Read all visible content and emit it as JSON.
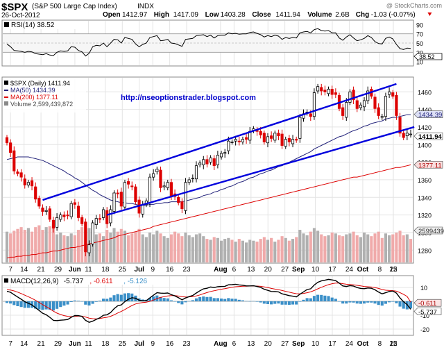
{
  "header": {
    "symbol": "$SPX",
    "name": "(S&P 500 Large Cap Index)",
    "exchange": "INDX",
    "watermark": "@ StockCharts.com",
    "date": "26-Oct-2012",
    "quote": [
      {
        "label": "Open",
        "value": "1412.97"
      },
      {
        "label": "High",
        "value": "1417.09"
      },
      {
        "label": "Low",
        "value": "1403.28"
      },
      {
        "label": "Close",
        "value": "1411.94"
      },
      {
        "label": "Volume",
        "value": "2.6B"
      },
      {
        "label": "Chg",
        "value": "-1.03 (-0.07%)"
      }
    ]
  },
  "url_overlay": "http://nseoptionstrader.blogspot.com",
  "rsi_panel": {
    "legend": "RSI(14) 38.52",
    "tag": "38.52",
    "ticks": [
      "90",
      "70",
      "50",
      "30",
      "10"
    ]
  },
  "price_panel": {
    "legend": [
      {
        "text": "$SPX (Daily) 1411.94",
        "color": "#000000",
        "marker": "square"
      },
      {
        "text": "MA(50) 1434.39",
        "color": "#22227a",
        "marker": "line"
      },
      {
        "text": "MA(200) 1377.11",
        "color": "#dd0000",
        "marker": "line"
      },
      {
        "text": "Volume 2,599,439,872",
        "color": "#888888",
        "marker": "square"
      }
    ],
    "ticks": [
      "1460",
      "1440",
      "1420",
      "1400",
      "1380",
      "1360",
      "1340",
      "1320",
      "1300",
      "1280"
    ],
    "tags": {
      "ma50": "1434.39",
      "close": "1411.94",
      "ma200": "1377.11",
      "volume": "2599439"
    }
  },
  "macd_panel": {
    "legend": [
      {
        "text": "MACD(12,26,9)",
        "color": "#000000"
      },
      {
        "text": "-5.737",
        "color": "#000000"
      },
      {
        "text": ", -0.611",
        "color": "#dd0000"
      },
      {
        "text": ", -5.126",
        "color": "#3a8fc8"
      }
    ],
    "ticks": [
      "10",
      "0",
      "-10",
      "-20"
    ],
    "tags": {
      "signal": "-0.611",
      "macd": "-5.737"
    }
  },
  "x_axis_labels": [
    "7",
    "14",
    "21",
    "29",
    "Jun",
    "11",
    "18",
    "25",
    "Jul",
    "9",
    "16",
    "23",
    "Aug",
    "6",
    "13",
    "20",
    "27",
    "Sep",
    "10",
    "17",
    "24",
    "Oct",
    "8",
    "15",
    "22"
  ],
  "colors": {
    "up": "#ffffff",
    "down": "#dd0000",
    "ma50": "#22227a",
    "ma200": "#dd0000",
    "channel": "#0000dd",
    "volume_up": "#b0b0b0",
    "volume_down": "#f0aaaa",
    "macd_hist": "#3a8fc8",
    "grid": "#e4e4e4"
  },
  "chart_data": {
    "type": "candlestick",
    "x_unit": "trading days (May 2 – Oct 26, 2012)",
    "ylim": [
      1266,
      1476
    ],
    "close": [
      1402,
      1391,
      1370,
      1367,
      1363,
      1354,
      1357,
      1353,
      1338,
      1330,
      1324,
      1325,
      1315,
      1305,
      1317,
      1320,
      1318,
      1319,
      1333,
      1332,
      1317,
      1310,
      1278,
      1286,
      1311,
      1316,
      1315,
      1326,
      1310,
      1326,
      1345,
      1344,
      1330,
      1357,
      1355,
      1352,
      1335,
      1322,
      1331,
      1336,
      1363,
      1367,
      1372,
      1351,
      1353,
      1357,
      1342,
      1341,
      1334,
      1327,
      1357,
      1360,
      1362,
      1376,
      1379,
      1383,
      1378,
      1385,
      1376,
      1388,
      1390,
      1391,
      1404,
      1403,
      1406,
      1403,
      1406,
      1406,
      1415,
      1418,
      1415,
      1411,
      1403,
      1409,
      1407,
      1413,
      1410,
      1399,
      1406,
      1403,
      1406,
      1405,
      1431,
      1435,
      1437,
      1432,
      1459,
      1466,
      1461,
      1460,
      1463,
      1457,
      1457,
      1441,
      1433,
      1448,
      1460,
      1451,
      1441,
      1445,
      1450,
      1461,
      1455,
      1441,
      1433,
      1432,
      1455,
      1460,
      1455,
      1433,
      1413,
      1408,
      1413,
      1412
    ],
    "ma50": [
      1383,
      1384,
      1385,
      1386,
      1386,
      1386,
      1386,
      1385,
      1384,
      1383,
      1382,
      1380,
      1378,
      1376,
      1374,
      1372,
      1370,
      1367,
      1365,
      1362,
      1360,
      1357,
      1354,
      1351,
      1348,
      1346,
      1343,
      1341,
      1339,
      1337,
      1336,
      1335,
      1334,
      1334,
      1333,
      1333,
      1332,
      1331,
      1331,
      1331,
      1332,
      1332,
      1333,
      1333,
      1334,
      1334,
      1335,
      1335,
      1335,
      1335,
      1336,
      1337,
      1338,
      1339,
      1340,
      1342,
      1343,
      1344,
      1346,
      1347,
      1349,
      1350,
      1352,
      1353,
      1355,
      1357,
      1358,
      1360,
      1362,
      1363,
      1365,
      1367,
      1368,
      1370,
      1371,
      1373,
      1375,
      1376,
      1378,
      1380,
      1382,
      1384,
      1386,
      1388,
      1390,
      1392,
      1395,
      1397,
      1399,
      1401,
      1403,
      1405,
      1407,
      1409,
      1410,
      1412,
      1414,
      1416,
      1417,
      1419,
      1421,
      1422,
      1424,
      1425,
      1426,
      1427,
      1429,
      1430,
      1431,
      1431,
      1432,
      1433,
      1434,
      1434
    ],
    "ma200": [
      1271,
      1272,
      1272,
      1273,
      1273,
      1274,
      1274,
      1275,
      1275,
      1276,
      1277,
      1277,
      1278,
      1279,
      1279,
      1280,
      1281,
      1282,
      1283,
      1283,
      1284,
      1285,
      1286,
      1287,
      1288,
      1289,
      1290,
      1291,
      1292,
      1293,
      1294,
      1296,
      1297,
      1298,
      1299,
      1300,
      1301,
      1302,
      1303,
      1304,
      1305,
      1307,
      1308,
      1309,
      1310,
      1311,
      1312,
      1313,
      1314,
      1315,
      1316,
      1317,
      1318,
      1319,
      1320,
      1321,
      1322,
      1323,
      1324,
      1325,
      1326,
      1327,
      1328,
      1329,
      1330,
      1331,
      1332,
      1333,
      1334,
      1335,
      1336,
      1337,
      1338,
      1339,
      1340,
      1341,
      1342,
      1343,
      1344,
      1345,
      1346,
      1347,
      1348,
      1349,
      1350,
      1351,
      1352,
      1353,
      1354,
      1355,
      1356,
      1357,
      1358,
      1359,
      1360,
      1361,
      1362,
      1363,
      1363,
      1364,
      1365,
      1366,
      1367,
      1368,
      1369,
      1370,
      1371,
      1372,
      1373,
      1374,
      1374,
      1375,
      1376,
      1377
    ],
    "rsi": [
      48,
      42,
      34,
      33,
      32,
      30,
      32,
      31,
      27,
      26,
      25,
      27,
      24,
      23,
      30,
      33,
      32,
      33,
      42,
      41,
      34,
      31,
      22,
      28,
      42,
      45,
      44,
      50,
      42,
      50,
      58,
      57,
      50,
      62,
      60,
      58,
      48,
      42,
      47,
      50,
      62,
      64,
      66,
      55,
      56,
      58,
      50,
      49,
      46,
      43,
      58,
      59,
      60,
      66,
      67,
      68,
      64,
      67,
      61,
      66,
      67,
      67,
      72,
      70,
      71,
      69,
      70,
      70,
      73,
      74,
      71,
      68,
      63,
      66,
      64,
      67,
      65,
      58,
      62,
      60,
      62,
      61,
      72,
      74,
      75,
      72,
      79,
      81,
      77,
      76,
      77,
      72,
      72,
      61,
      56,
      63,
      68,
      61,
      55,
      57,
      60,
      66,
      62,
      53,
      49,
      48,
      60,
      63,
      59,
      47,
      38,
      36,
      39,
      38.52
    ],
    "volume_billions": [
      3.4,
      3.2,
      3.5,
      3.7,
      3.9,
      3.6,
      3.8,
      3.4,
      3.9,
      4.1,
      3.6,
      3.9,
      4.0,
      4.2,
      3.1,
      3.3,
      3.0,
      2.9,
      3.2,
      3.0,
      3.6,
      3.9,
      4.5,
      3.8,
      3.4,
      3.1,
      3.2,
      2.9,
      3.6,
      3.3,
      3.8,
      3.4,
      3.7,
      3.5,
      3.0,
      3.2,
      3.4,
      3.7,
      3.1,
      2.8,
      3.3,
      3.1,
      3.5,
      3.2,
      2.9,
      2.7,
      3.1,
      3.4,
      3.2,
      2.9,
      3.3,
      3.0,
      2.8,
      3.1,
      3.2,
      2.9,
      2.6,
      2.5,
      2.8,
      2.7,
      2.4,
      2.6,
      2.7,
      2.5,
      2.3,
      2.6,
      2.4,
      2.2,
      2.5,
      2.4,
      2.3,
      2.6,
      2.8,
      2.5,
      2.7,
      2.3,
      2.5,
      2.9,
      2.7,
      2.4,
      2.6,
      2.8,
      3.6,
      3.2,
      3.0,
      3.4,
      3.8,
      3.5,
      3.1,
      2.9,
      3.0,
      3.3,
      3.2,
      3.0,
      2.9,
      3.1,
      3.2,
      3.4,
      3.0,
      2.8,
      3.3,
      3.1,
      2.9,
      3.2,
      3.4,
      2.7,
      3.2,
      3.0,
      3.1,
      3.3,
      3.5,
      3.0,
      3.1,
      2.6
    ],
    "macd": [
      7.2,
      6.5,
      4.8,
      3.1,
      1.5,
      -0.3,
      -1.4,
      -2.6,
      -4.6,
      -6.6,
      -8.6,
      -9.7,
      -11.5,
      -13.7,
      -13.9,
      -13.6,
      -13.4,
      -13.1,
      -11.5,
      -10.2,
      -10.3,
      -10.9,
      -13.7,
      -15.1,
      -14.3,
      -13.0,
      -11.9,
      -10.0,
      -9.7,
      -8.1,
      -5.3,
      -3.2,
      -2.6,
      -0.2,
      1.5,
      2.6,
      2.2,
      0.8,
      0.4,
      0.5,
      2.5,
      4.4,
      6.2,
      5.9,
      5.8,
      6.0,
      4.8,
      3.9,
      2.6,
      1.1,
      2.4,
      3.4,
      4.2,
      6.0,
      7.6,
      9.0,
      9.4,
      10.3,
      9.9,
      10.5,
      10.7,
      10.8,
      11.9,
      12.0,
      12.3,
      11.8,
      11.6,
      11.1,
      11.1,
      11.2,
      10.7,
      10.0,
      8.7,
      7.9,
      7.1,
      7.0,
      6.8,
      5.4,
      4.8,
      4.1,
      3.7,
      3.2,
      5.1,
      6.8,
      8.5,
      9.0,
      11.7,
      13.7,
      14.7,
      15.2,
      15.8,
      15.4,
      14.9,
      13.1,
      11.1,
      10.7,
      11.3,
      11.0,
      9.9,
      9.3,
      9.1,
      9.6,
      9.4,
      8.3,
      6.7,
      5.4,
      6.2,
      7.1,
      7.4,
      5.9,
      2.5,
      -0.3,
      -2.3,
      -5.737
    ],
    "macd_signal": [
      8.4,
      8.1,
      7.5,
      6.6,
      5.6,
      4.4,
      3.3,
      2.1,
      0.7,
      -0.8,
      -2.4,
      -3.9,
      -5.4,
      -7.1,
      -8.5,
      -9.5,
      -10.3,
      -10.8,
      -11.0,
      -10.8,
      -10.7,
      -10.7,
      -11.3,
      -12.1,
      -12.5,
      -12.6,
      -12.4,
      -11.9,
      -11.5,
      -10.8,
      -9.7,
      -8.4,
      -7.3,
      -5.9,
      -4.4,
      -3.0,
      -1.9,
      -1.3,
      -0.9,
      -0.6,
      0.0,
      0.9,
      2.0,
      2.8,
      3.4,
      3.9,
      4.1,
      4.1,
      3.8,
      3.3,
      3.1,
      3.2,
      3.4,
      3.9,
      4.6,
      5.5,
      6.3,
      7.1,
      7.6,
      8.2,
      8.7,
      9.1,
      9.6,
      10.1,
      10.5,
      10.7,
      10.9,
      10.9,
      11.0,
      11.0,
      11.0,
      10.8,
      10.4,
      9.9,
      9.3,
      8.8,
      8.4,
      7.8,
      7.2,
      6.6,
      6.0,
      5.5,
      5.4,
      5.7,
      6.2,
      6.8,
      7.8,
      9.0,
      10.1,
      11.1,
      12.0,
      12.7,
      13.1,
      13.1,
      12.7,
      12.3,
      12.1,
      11.9,
      11.5,
      11.1,
      10.7,
      10.5,
      10.3,
      9.9,
      9.3,
      8.5,
      8.0,
      7.8,
      7.7,
      7.3,
      6.3,
      5.0,
      3.5,
      -0.611
    ],
    "macd_histogram_last": -5.126,
    "channel_lines": [
      {
        "name": "upper",
        "start": [
          10,
          1337
        ],
        "end": [
          109,
          1469
        ]
      },
      {
        "name": "lower",
        "start": [
          28,
          1320
        ],
        "end": [
          114,
          1420
        ]
      }
    ]
  }
}
